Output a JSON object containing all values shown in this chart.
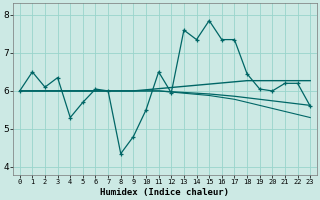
{
  "xlabel": "Humidex (Indice chaleur)",
  "xlim": [
    -0.5,
    23.5
  ],
  "ylim": [
    3.8,
    8.3
  ],
  "yticks": [
    4,
    5,
    6,
    7,
    8
  ],
  "xticks": [
    0,
    1,
    2,
    3,
    4,
    5,
    6,
    7,
    8,
    9,
    10,
    11,
    12,
    13,
    14,
    15,
    16,
    17,
    18,
    19,
    20,
    21,
    22,
    23
  ],
  "bg_color": "#cce9e4",
  "grid_color": "#99d4cc",
  "line_color": "#006666",
  "series_main": [
    6.0,
    6.5,
    6.1,
    6.35,
    5.3,
    5.7,
    6.05,
    6.0,
    4.35,
    4.8,
    5.5,
    6.5,
    5.95,
    7.6,
    7.35,
    7.85,
    7.35,
    7.35,
    6.45,
    6.05,
    6.0,
    6.2,
    6.2,
    5.6
  ],
  "series_trend1": [
    6.0,
    6.0,
    6.0,
    6.0,
    6.0,
    6.0,
    6.0,
    6.0,
    6.0,
    6.0,
    6.03,
    6.06,
    6.09,
    6.12,
    6.15,
    6.18,
    6.21,
    6.24,
    6.27,
    6.27,
    6.27,
    6.27,
    6.27,
    6.27
  ],
  "series_trend2": [
    6.0,
    6.0,
    6.0,
    6.0,
    6.0,
    6.0,
    6.0,
    6.0,
    6.0,
    6.0,
    6.0,
    6.0,
    5.98,
    5.96,
    5.94,
    5.92,
    5.89,
    5.86,
    5.82,
    5.78,
    5.74,
    5.7,
    5.66,
    5.62
  ],
  "series_trend3": [
    6.0,
    6.0,
    6.0,
    6.0,
    6.0,
    6.0,
    6.0,
    6.0,
    6.0,
    6.0,
    6.0,
    6.0,
    5.97,
    5.94,
    5.91,
    5.88,
    5.83,
    5.78,
    5.7,
    5.62,
    5.54,
    5.46,
    5.38,
    5.3
  ]
}
